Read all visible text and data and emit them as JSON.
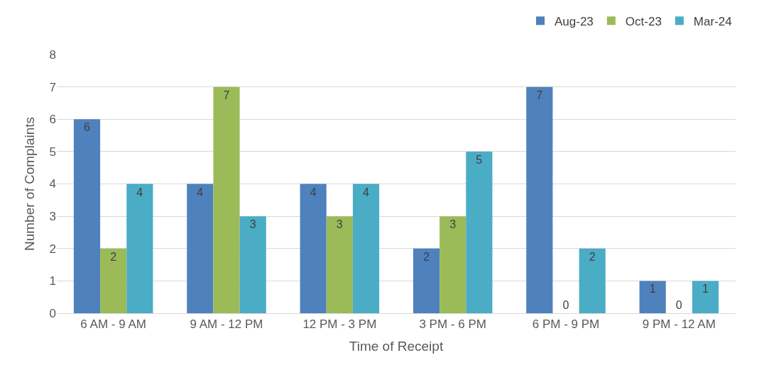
{
  "chart_data": {
    "type": "bar",
    "xlabel": "Time of Receipt",
    "ylabel": "Number of Complaints",
    "categories": [
      "6 AM - 9 AM",
      "9 AM - 12 PM",
      "12 PM - 3 PM",
      "3 PM - 6 PM",
      "6 PM - 9 PM",
      "9 PM - 12 AM"
    ],
    "series": [
      {
        "name": "Aug-23",
        "color": "#4f81bd",
        "values": [
          6,
          4,
          4,
          2,
          7,
          1
        ]
      },
      {
        "name": "Oct-23",
        "color": "#9bbb59",
        "values": [
          2,
          7,
          3,
          3,
          0,
          0
        ]
      },
      {
        "name": "Mar-24",
        "color": "#4bacc6",
        "values": [
          4,
          3,
          4,
          5,
          2,
          1
        ]
      }
    ],
    "ylim": [
      0,
      8
    ],
    "yticks": [
      0,
      1,
      2,
      3,
      4,
      5,
      6,
      7,
      8
    ],
    "grid": "y",
    "legend": "top right",
    "data_labels": true
  }
}
